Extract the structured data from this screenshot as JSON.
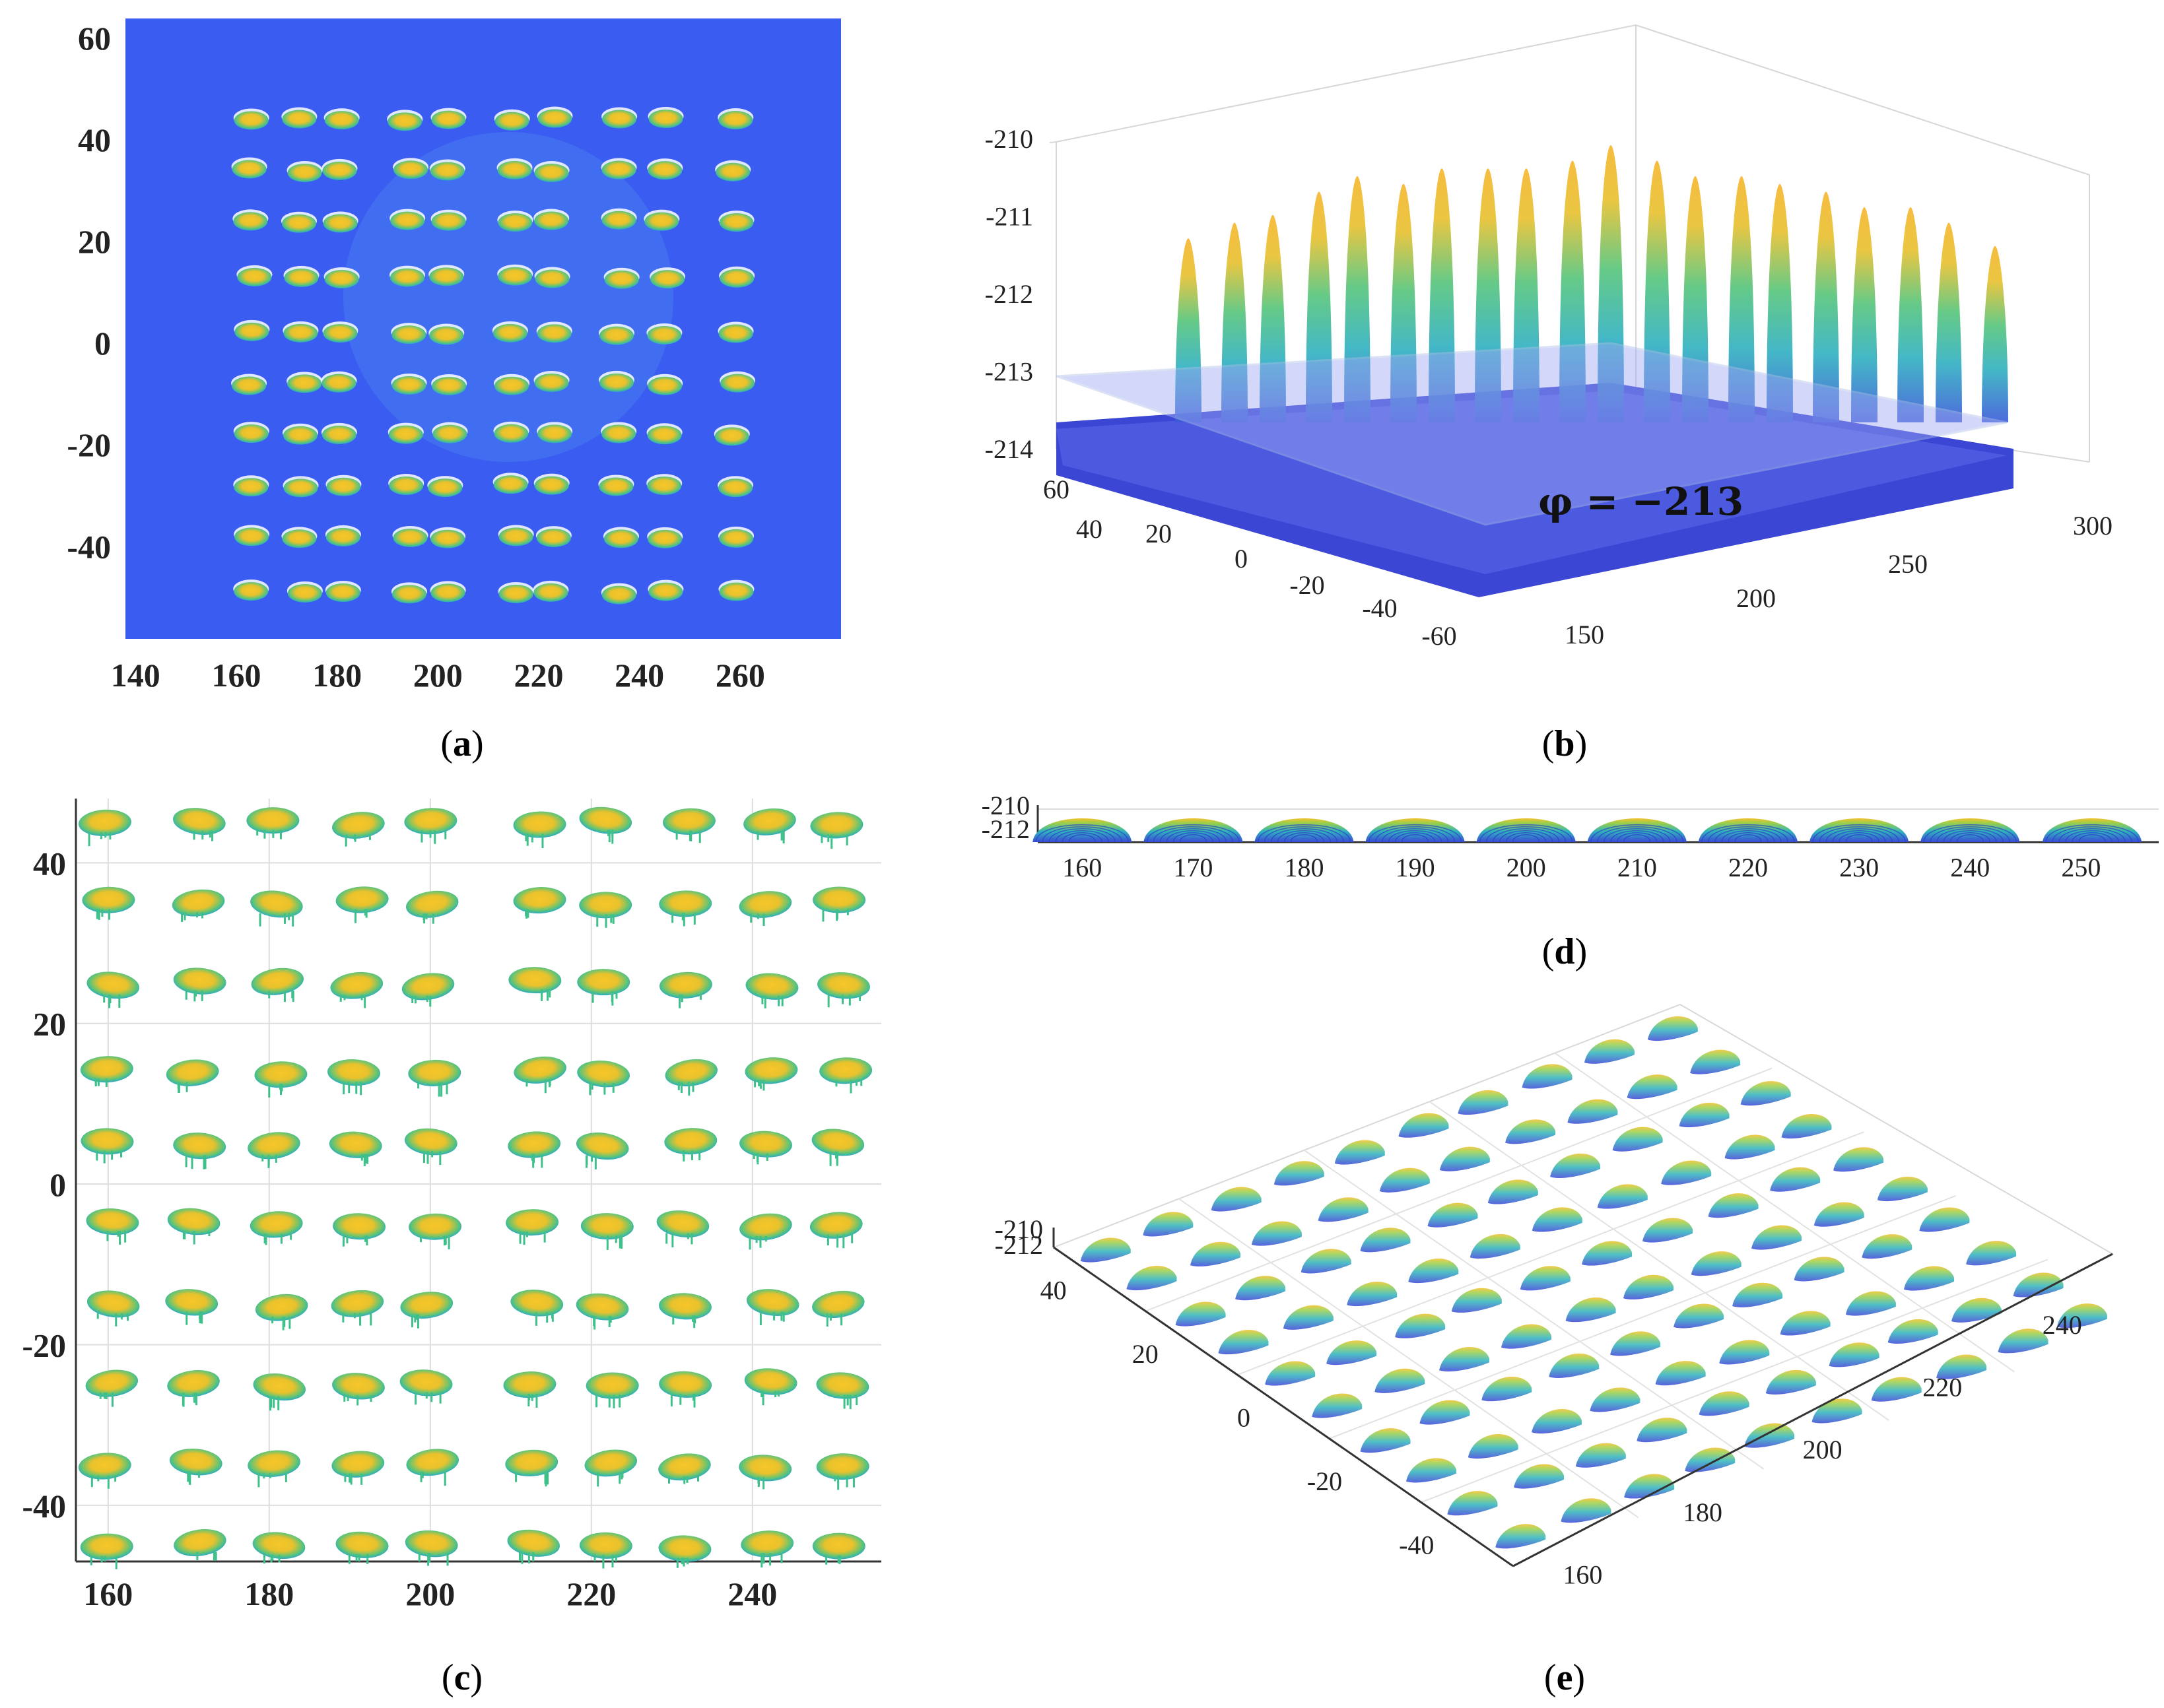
{
  "figure": {
    "colors": {
      "background_blue": "#3b5cf0",
      "seed_yellow": "#f2c128",
      "seed_green": "#49c27b",
      "seed_teal": "#2fa8c2",
      "seed_blue": "#3747d6",
      "plane": "#8c9cf2",
      "grid": "#dedede",
      "axis": "#333333"
    }
  },
  "chart_data": [
    {
      "id": "a",
      "type": "heatmap",
      "caption": {
        "open": "(",
        "letter": "a",
        "close": ")"
      },
      "xticks": [
        "140",
        "160",
        "180",
        "200",
        "220",
        "240",
        "260"
      ],
      "yticks": [
        "60",
        "40",
        "20",
        "0",
        "-20",
        "-40"
      ],
      "xlim": [
        138,
        280
      ],
      "ylim": [
        -58,
        64
      ],
      "seed_columns_x": [
        163,
        173,
        181,
        194,
        202,
        215,
        223,
        236,
        245,
        259
      ],
      "seed_rows_y": [
        44,
        34,
        24,
        13,
        2,
        -8,
        -18,
        -28,
        -38,
        -49
      ]
    },
    {
      "id": "b",
      "type": "scatter",
      "caption": {
        "open": "(",
        "letter": "b",
        "close": ")"
      },
      "zticks": [
        "-210",
        "-211",
        "-212",
        "-213",
        "-214"
      ],
      "yticks": [
        "60",
        "40",
        "20",
        "0",
        "-20",
        "-40",
        "-60"
      ],
      "xticks": [
        "150",
        "200",
        "250",
        "300"
      ],
      "zlim": [
        -214,
        -210
      ],
      "plane_z": -213,
      "annotation": "φ = −213",
      "peak_heights": [
        -211.2,
        -211.0,
        -210.9,
        -210.6,
        -210.4,
        -210.5,
        -210.3,
        -210.3,
        -210.3,
        -210.2,
        -210.0,
        -210.2,
        -210.4,
        -210.4,
        -210.5,
        -210.6,
        -210.8,
        -210.8,
        -211.0,
        -211.3
      ]
    },
    {
      "id": "c",
      "type": "scatter",
      "caption": {
        "open": "(",
        "letter": "c",
        "close": ")"
      },
      "xticks": [
        "160",
        "180",
        "200",
        "220",
        "240"
      ],
      "yticks": [
        "40",
        "20",
        "0",
        "-20",
        "-40"
      ],
      "xlim": [
        156,
        256
      ],
      "ylim": [
        -47,
        48
      ],
      "seed_columns_x": [
        160,
        171,
        181,
        191,
        200,
        213,
        222,
        232,
        242,
        251
      ],
      "seed_rows_y": [
        45,
        35,
        25,
        14,
        5,
        -5,
        -15,
        -25,
        -35,
        -45
      ]
    },
    {
      "id": "d",
      "type": "scatter",
      "caption": {
        "open": "(",
        "letter": "d",
        "close": ")"
      },
      "xticks": [
        "160",
        "170",
        "180",
        "190",
        "200",
        "210",
        "220",
        "230",
        "240",
        "250"
      ],
      "zticks": [
        "-210",
        "-212"
      ],
      "xlim": [
        156,
        257
      ],
      "seed_centers_x": [
        160,
        170,
        180,
        190,
        200,
        210,
        220,
        230,
        240,
        251
      ]
    },
    {
      "id": "e",
      "type": "scatter",
      "caption": {
        "open": "(",
        "letter": "e",
        "close": ")"
      },
      "zticks": [
        "-210",
        "-212"
      ],
      "yticks": [
        "40",
        "20",
        "0",
        "-20",
        "-40"
      ],
      "xticks": [
        "160",
        "180",
        "200",
        "220",
        "240"
      ],
      "grid_rows": 10,
      "grid_cols": 10
    }
  ]
}
